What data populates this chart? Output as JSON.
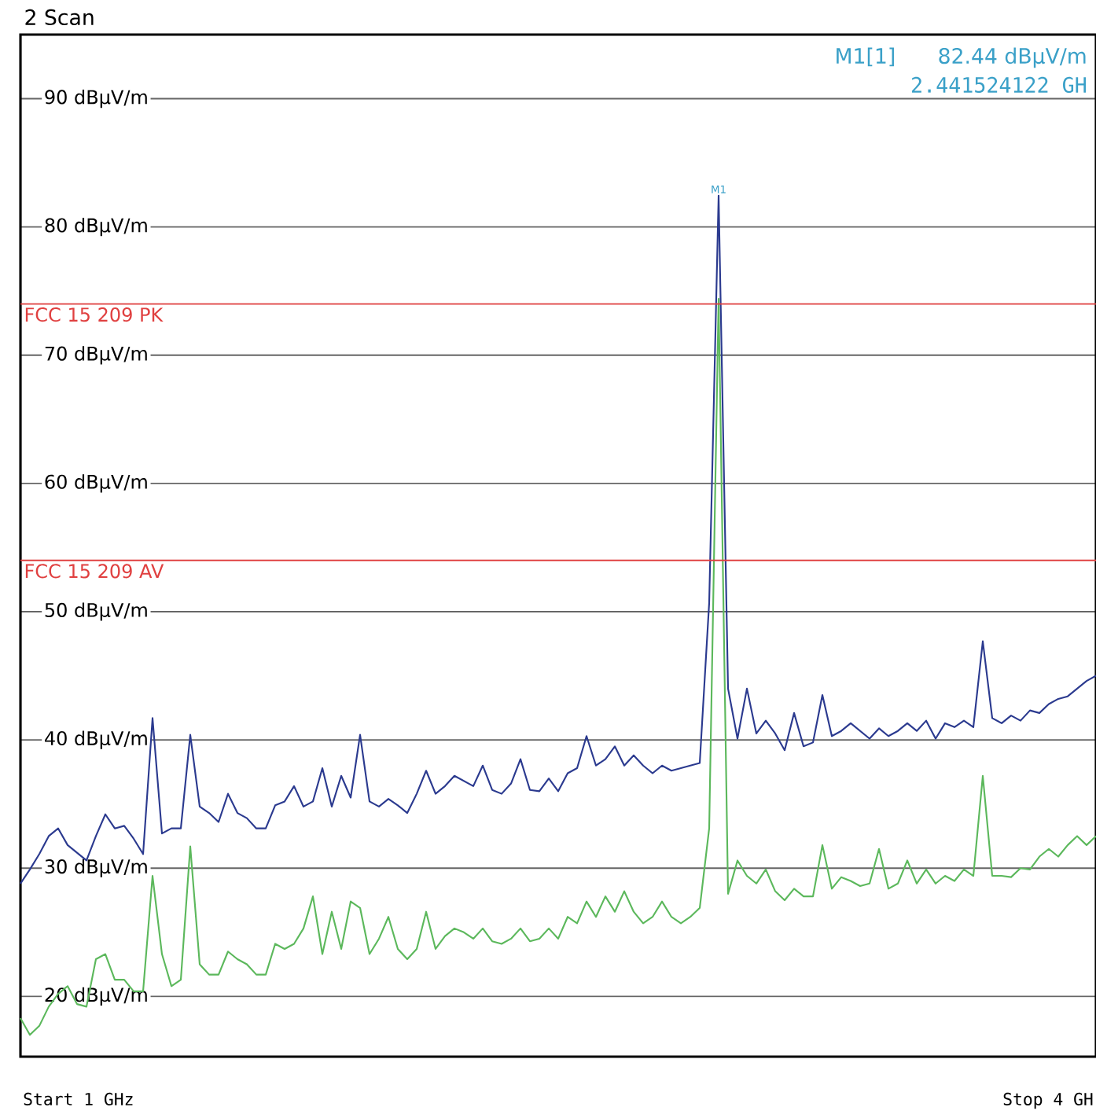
{
  "chart_data": {
    "type": "line",
    "title": "2 Scan",
    "categories": [
      null,
      null,
      null,
      null,
      null,
      null,
      null,
      null,
      null,
      null,
      null,
      null,
      null,
      null,
      null,
      null,
      null,
      null,
      null,
      null,
      null,
      null,
      null,
      null,
      null,
      null,
      null,
      null,
      null,
      null,
      null,
      null,
      null,
      null,
      null,
      null,
      null,
      null,
      null,
      null,
      null,
      null,
      null,
      null,
      null,
      null,
      null,
      null,
      null,
      null,
      null,
      null,
      null,
      null,
      null,
      null,
      null,
      null,
      null,
      null,
      null,
      null,
      null,
      null,
      null,
      null,
      null,
      null,
      null,
      null,
      null,
      null,
      null,
      null,
      null,
      null,
      null,
      null,
      null,
      null,
      null,
      null,
      null,
      null,
      null,
      null,
      null,
      null,
      null,
      null,
      null,
      null,
      null,
      null,
      null,
      null,
      null,
      null,
      null,
      null,
      null,
      null,
      null,
      null,
      null,
      null,
      null,
      null,
      null,
      null,
      null,
      null,
      null,
      null,
      null
    ],
    "series": [
      {
        "color": "#2b3a8f",
        "values": [
          28.8,
          29.9,
          31.1,
          32.5,
          33.1,
          31.8,
          31.2,
          30.6,
          32.5,
          34.2,
          33.1,
          33.3,
          32.3,
          31.1,
          41.7,
          32.7,
          33.1,
          33.1,
          40.4,
          34.8,
          34.3,
          33.6,
          35.8,
          34.3,
          33.9,
          33.1,
          33.1,
          34.9,
          35.2,
          36.4,
          34.8,
          35.2,
          37.8,
          34.8,
          37.2,
          35.5,
          40.4,
          35.2,
          34.8,
          35.4,
          34.9,
          34.3,
          35.8,
          37.6,
          35.8,
          36.4,
          37.2,
          36.8,
          36.4,
          38.0,
          36.1,
          35.8,
          36.6,
          38.5,
          36.1,
          36.0,
          37.0,
          36.0,
          37.4,
          37.8,
          40.3,
          38.0,
          38.5,
          39.5,
          38.0,
          38.8,
          38.0,
          37.4,
          38.0,
          37.6,
          37.8,
          38.0,
          38.2,
          50.7,
          82.44,
          44.0,
          40.1,
          44.0,
          40.5,
          41.5,
          40.5,
          39.2,
          42.1,
          39.5,
          39.8,
          43.5,
          40.3,
          40.7,
          41.3,
          40.7,
          40.1,
          40.9,
          40.3,
          40.7,
          41.3,
          40.7,
          41.5,
          40.1,
          41.3,
          41.0,
          41.5,
          41.0,
          47.7,
          41.7,
          41.3,
          41.9,
          41.5,
          42.3,
          42.1,
          42.8,
          43.2,
          43.4,
          44.0,
          44.6,
          45.0
        ]
      },
      {
        "color": "#5cb85c",
        "values": [
          18.3,
          17.0,
          17.7,
          19.2,
          20.2,
          20.8,
          19.4,
          19.2,
          22.9,
          23.3,
          21.3,
          21.3,
          20.4,
          20.4,
          29.4,
          23.3,
          20.8,
          21.3,
          31.7,
          22.5,
          21.7,
          21.7,
          23.5,
          22.9,
          22.5,
          21.7,
          21.7,
          24.1,
          23.7,
          24.1,
          25.3,
          27.8,
          23.3,
          26.6,
          23.7,
          27.4,
          26.9,
          23.3,
          24.5,
          26.2,
          23.7,
          22.9,
          23.7,
          26.6,
          23.7,
          24.7,
          25.3,
          25.0,
          24.5,
          25.3,
          24.3,
          24.1,
          24.5,
          25.3,
          24.3,
          24.5,
          25.3,
          24.5,
          26.2,
          25.7,
          27.4,
          26.2,
          27.8,
          26.6,
          28.2,
          26.6,
          25.7,
          26.2,
          27.4,
          26.2,
          25.7,
          26.2,
          26.9,
          33.1,
          74.4,
          28.0,
          30.6,
          29.4,
          28.8,
          29.9,
          28.2,
          27.5,
          28.4,
          27.8,
          27.8,
          31.8,
          28.4,
          29.3,
          29.0,
          28.6,
          28.8,
          31.5,
          28.4,
          28.8,
          30.6,
          28.8,
          29.9,
          28.8,
          29.4,
          29.0,
          29.9,
          29.4,
          37.2,
          29.4,
          29.4,
          29.3,
          30.0,
          29.9,
          30.9,
          31.5,
          30.9,
          31.8,
          32.5,
          31.8,
          32.5
        ]
      }
    ],
    "ylim": [
      15.3,
      95
    ],
    "yticks": [
      {
        "value": 20,
        "label": "20 dBµV/m"
      },
      {
        "value": 30,
        "label": "30 dBµV/m"
      },
      {
        "value": 40,
        "label": "40 dBµV/m"
      },
      {
        "value": 50,
        "label": "50 dBµV/m"
      },
      {
        "value": 60,
        "label": "60 dBµV/m"
      },
      {
        "value": 70,
        "label": "70 dBµV/m"
      },
      {
        "value": 80,
        "label": "80 dBµV/m"
      },
      {
        "value": 90,
        "label": "90 dBµV/m"
      }
    ],
    "grid": "y",
    "tick_labels": "y",
    "ref_lines": [
      {
        "axis": "y",
        "value": 74,
        "label": "FCC 15 209 PK",
        "color": "#e04040"
      },
      {
        "axis": "y",
        "value": 54,
        "label": "FCC 15 209 AV",
        "color": "#e04040"
      }
    ],
    "annotations": [
      "M1[1]",
      "82.44 dBµV/m",
      "2.441524122 GH",
      {
        "text": "M1",
        "y": 82.44
      },
      "Start 1 GHz",
      "Stop 4 GH"
    ]
  }
}
